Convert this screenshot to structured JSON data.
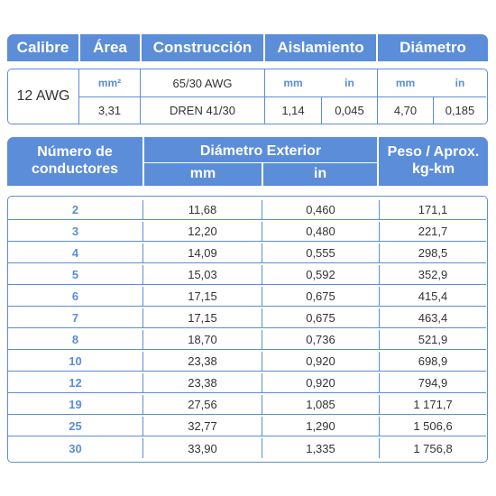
{
  "spec": {
    "headers": {
      "calibre": "Calibre",
      "area": "Área",
      "construccion": "Construcción",
      "aislamiento": "Aislamiento",
      "diametro": "Diámetro"
    },
    "calibre_value": "12 AWG",
    "area_unit": "mm²",
    "area_value": "3,31",
    "construccion_line1": "65/30 AWG",
    "construccion_line2": "DREN 41/30",
    "aislamiento_mm_label": "mm",
    "aislamiento_in_label": "in",
    "aislamiento_mm": "1,14",
    "aislamiento_in": "0,045",
    "diametro_mm_label": "mm",
    "diametro_in_label": "in",
    "diametro_mm": "4,70",
    "diametro_in": "0,185"
  },
  "table": {
    "headers": {
      "conductores_line1": "Número de",
      "conductores_line2": "conductores",
      "diametro_exterior": "Diámetro Exterior",
      "mm": "mm",
      "in": "in",
      "peso_line1": "Peso / Aprox.",
      "peso_line2": "kg-km"
    },
    "rows": [
      {
        "n": "2",
        "mm": "11,68",
        "in": "0,460",
        "peso": "171,1"
      },
      {
        "n": "3",
        "mm": "12,20",
        "in": "0,480",
        "peso": "221,7"
      },
      {
        "n": "4",
        "mm": "14,09",
        "in": "0,555",
        "peso": "298,5"
      },
      {
        "n": "5",
        "mm": "15,03",
        "in": "0,592",
        "peso": "352,9"
      },
      {
        "n": "6",
        "mm": "17,15",
        "in": "0,675",
        "peso": "415,4"
      },
      {
        "n": "7",
        "mm": "17,15",
        "in": "0,675",
        "peso": "463,4"
      },
      {
        "n": "8",
        "mm": "18,70",
        "in": "0,736",
        "peso": "521,9"
      },
      {
        "n": "10",
        "mm": "23,38",
        "in": "0,920",
        "peso": "698,9"
      },
      {
        "n": "12",
        "mm": "23,38",
        "in": "0,920",
        "peso": "794,9"
      },
      {
        "n": "19",
        "mm": "27,56",
        "in": "1,085",
        "peso": "1 171,7"
      },
      {
        "n": "25",
        "mm": "32,77",
        "in": "1,290",
        "peso": "1 506,6"
      },
      {
        "n": "30",
        "mm": "33,90",
        "in": "1,335",
        "peso": "1 756,8"
      }
    ]
  },
  "colors": {
    "accent": "#5b8dd9",
    "text": "#333333"
  }
}
